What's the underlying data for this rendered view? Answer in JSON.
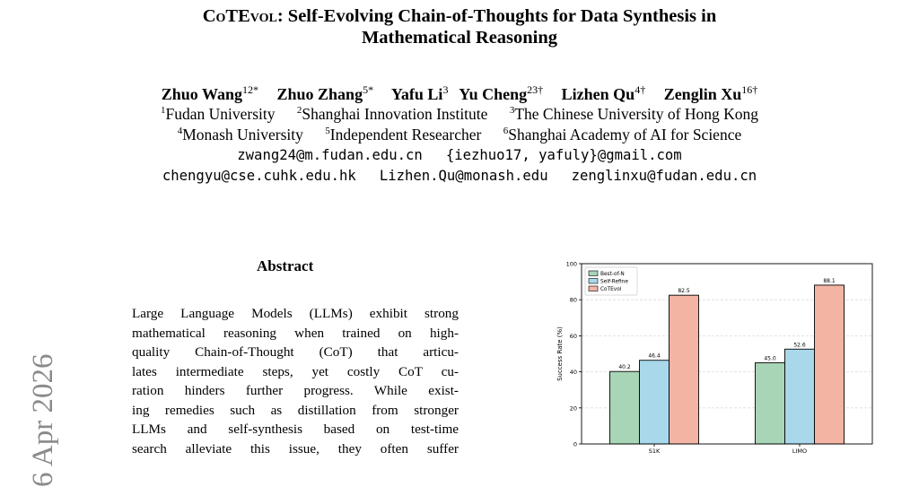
{
  "paper": {
    "title_line1": "COTEVOL: Self-Evolving Chain-of-Thoughts for Data Synthesis in",
    "title_line1_prefix": "C",
    "title_line1_sc1": "o",
    "title_line1_mid": "TE",
    "title_line1_sc2": "vol",
    "title_line1_rest": ": Self-Evolving Chain-of-Thoughts for Data Synthesis in",
    "title_line2": "Mathematical Reasoning",
    "authors": [
      {
        "name": "Zhuo Wang",
        "sup": "12*"
      },
      {
        "name": "Zhuo Zhang",
        "sup": "5*"
      },
      {
        "name": "Yafu Li",
        "sup": "3"
      },
      {
        "name": "Yu Cheng",
        "sup": "23†"
      },
      {
        "name": "Lizhen Qu",
        "sup": "4†"
      },
      {
        "name": "Zenglin Xu",
        "sup": "16†"
      }
    ],
    "affiliations": [
      {
        "sup": "1",
        "name": "Fudan University"
      },
      {
        "sup": "2",
        "name": "Shanghai Innovation Institute"
      },
      {
        "sup": "3",
        "name": "The Chinese University of Hong Kong"
      },
      {
        "sup": "4",
        "name": "Monash University"
      },
      {
        "sup": "5",
        "name": "Independent Researcher"
      },
      {
        "sup": "6",
        "name": "Shanghai Academy of AI for Science"
      }
    ],
    "emails_line1": [
      "zwang24@m.fudan.edu.cn",
      "{iezhuo17, yafuly}@gmail.com"
    ],
    "emails_line2": [
      "chengyu@cse.cuhk.edu.hk",
      "Lizhen.Qu@monash.edu",
      "zenglinxu@fudan.edu.cn"
    ],
    "arxiv_stamp": "6 Apr 2026",
    "abstract_heading": "Abstract",
    "abstract_lines": [
      "Large Language Models (LLMs) exhibit strong",
      "mathematical reasoning when trained on high-",
      "quality Chain-of-Thought (CoT) that articu-",
      "lates intermediate steps, yet costly CoT cu-",
      "ration hinders further progress. While exist-",
      "ing remedies such as distillation from stronger",
      "LLMs and self-synthesis based on test-time",
      "search alleviate this issue, they often suffer"
    ]
  },
  "chart_data": {
    "type": "bar",
    "categories": [
      "S1K",
      "LIMO"
    ],
    "series": [
      {
        "name": "Best-of-N",
        "values": [
          40.2,
          45.0
        ],
        "color": "#a8d5b5"
      },
      {
        "name": "Self-Refine",
        "values": [
          46.4,
          52.6
        ],
        "color": "#a8d8ea"
      },
      {
        "name": "CoTEvol",
        "values": [
          82.5,
          88.1
        ],
        "color": "#f4b4a4"
      }
    ],
    "value_labels": [
      [
        "40.2",
        "45.0"
      ],
      [
        "46.4",
        "52.6"
      ],
      [
        "82.5",
        "88.1"
      ]
    ],
    "ylabel": "Success Rate (%)",
    "xlabel": "",
    "ylim": [
      0,
      100
    ],
    "yticks": [
      "0",
      "20",
      "40",
      "60",
      "80",
      "100"
    ],
    "grid": "horizontal",
    "legend": "top-left"
  }
}
